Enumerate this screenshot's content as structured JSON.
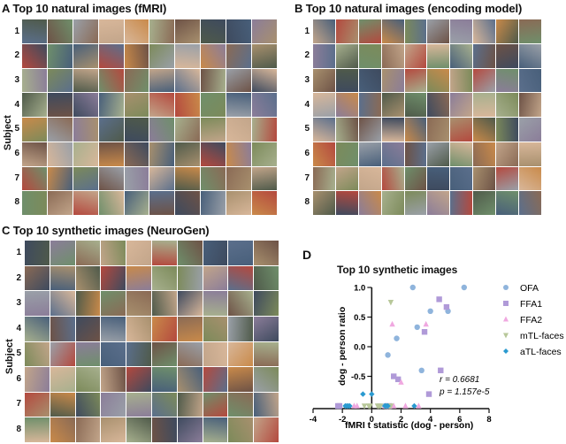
{
  "panels": {
    "A": {
      "letter": "A",
      "title": "A Top 10 natural images (fMRI)"
    },
    "B": {
      "letter": "B",
      "title": "B Top 10 natural images (encoding model)"
    },
    "C": {
      "letter": "C",
      "title": "C Top 10 synthetic images (NeuroGen)"
    },
    "D": {
      "letter": "D",
      "title": "Top 10 synthetic images"
    }
  },
  "grid_axis_label": "Subject",
  "row_labels": [
    "1",
    "2",
    "3",
    "4",
    "5",
    "6",
    "7",
    "8"
  ],
  "palette": [
    "#8a6a55",
    "#5b6f8c",
    "#7c8a5a",
    "#a8906e",
    "#6d5246",
    "#c2a58a",
    "#4f5a4a",
    "#9aa0a8",
    "#b4493e",
    "#3e4a5e",
    "#d8b79a",
    "#6f8f6b",
    "#8b7d99",
    "#c98a4a",
    "#485f7a",
    "#a7b08e"
  ],
  "chart_data": {
    "type": "scatter",
    "title": "Top 10 synthetic images",
    "xlabel": "fMRI t statistic (dog - person)",
    "ylabel": "dog - person ratio",
    "xlim": [
      -4,
      8
    ],
    "ylim": [
      -1.0,
      1.0
    ],
    "xticks": [
      "-4",
      "-2",
      "0",
      "2",
      "4",
      "6",
      "8"
    ],
    "yticks": [
      "1.0",
      "0.5",
      "0.0",
      "-0.5"
    ],
    "annotation_r": "r = 0.6681",
    "annotation_p": "p = 1.157e-5",
    "legend_position": "right",
    "series": [
      {
        "name": "OFA",
        "marker": "circle",
        "color": "#8fb4dc",
        "points": [
          [
            2.8,
            1.0
          ],
          [
            6.3,
            1.0
          ],
          [
            4.0,
            0.6
          ],
          [
            5.2,
            0.6
          ],
          [
            3.1,
            0.33
          ],
          [
            1.7,
            0.14
          ],
          [
            1.1,
            -0.14
          ],
          [
            3.4,
            -0.4
          ],
          [
            1.0,
            -1.0
          ],
          [
            0.9,
            -1.0
          ]
        ]
      },
      {
        "name": "FFA1",
        "marker": "square",
        "color": "#b09ad8",
        "points": [
          [
            4.6,
            0.8
          ],
          [
            5.1,
            0.67
          ],
          [
            3.6,
            0.25
          ],
          [
            4.7,
            -0.4
          ],
          [
            1.5,
            -0.5
          ],
          [
            1.8,
            -0.55
          ],
          [
            3.9,
            -0.8
          ],
          [
            -2.2,
            -1.0
          ],
          [
            -2.3,
            -1.0
          ],
          [
            1.2,
            -1.0
          ]
        ]
      },
      {
        "name": "FFA2",
        "marker": "triangle-up",
        "color": "#f0a8e0",
        "points": [
          [
            1.4,
            0.38
          ],
          [
            3.7,
            0.38
          ],
          [
            2.0,
            -0.6
          ],
          [
            -1.2,
            -1.0
          ],
          [
            1.5,
            -1.0
          ],
          [
            2.3,
            -1.0
          ],
          [
            3.2,
            -1.0
          ],
          [
            -1.0,
            -1.0
          ],
          [
            0.9,
            -1.0
          ],
          [
            1.0,
            -1.0
          ]
        ]
      },
      {
        "name": "mTL-faces",
        "marker": "triangle-down",
        "color": "#b8c89a",
        "points": [
          [
            1.3,
            0.75
          ],
          [
            -0.2,
            -1.0
          ],
          [
            0.5,
            -1.0
          ],
          [
            1.2,
            -1.0
          ],
          [
            1.1,
            -1.0
          ],
          [
            -0.5,
            -1.0
          ],
          [
            0.4,
            -1.0
          ],
          [
            1.3,
            -1.0
          ],
          [
            -0.1,
            -1.0
          ],
          [
            0.6,
            -1.0
          ]
        ]
      },
      {
        "name": "aTL-faces",
        "marker": "diamond",
        "color": "#2a9ad0",
        "points": [
          [
            -0.6,
            -0.8
          ],
          [
            0.0,
            -0.8
          ],
          [
            -1.7,
            -1.0
          ],
          [
            -1.6,
            -1.0
          ],
          [
            0.9,
            -1.0
          ],
          [
            1.0,
            -1.0
          ],
          [
            2.9,
            -1.0
          ],
          [
            -1.8,
            -1.0
          ],
          [
            1.1,
            -1.0
          ],
          [
            -1.5,
            -1.0
          ]
        ]
      }
    ]
  }
}
